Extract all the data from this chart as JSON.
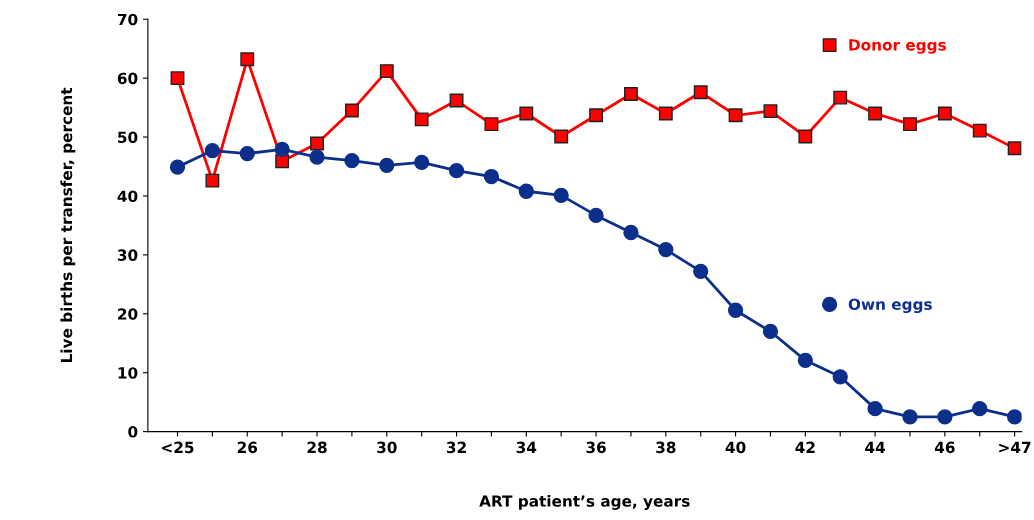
{
  "chart_data": {
    "type": "line",
    "xlabel": "ART patient’s age, years",
    "ylabel": "Live births per transfer, percent",
    "categories": [
      "<25",
      null,
      "26",
      null,
      "28",
      null,
      "30",
      null,
      "32",
      null,
      "34",
      null,
      "36",
      null,
      "38",
      null,
      "40",
      null,
      "42",
      null,
      "44",
      null,
      "46",
      null,
      ">47"
    ],
    "series": [
      {
        "name": "Donor eggs",
        "color": "#ff0000",
        "marker": "square",
        "values": [
          60.0,
          42.6,
          63.2,
          45.9,
          48.9,
          54.5,
          61.2,
          53.0,
          56.2,
          52.2,
          54.0,
          50.1,
          53.7,
          57.3,
          54.0,
          57.6,
          53.7,
          54.4,
          50.1,
          56.7,
          54.0,
          52.2,
          54.0,
          51.1,
          48.1
        ]
      },
      {
        "name": "Own eggs",
        "color": "#0d2f8c",
        "marker": "circle",
        "values": [
          44.9,
          47.7,
          47.2,
          47.9,
          46.6,
          46.0,
          45.2,
          45.7,
          44.3,
          43.3,
          40.8,
          40.1,
          36.7,
          33.8,
          30.9,
          27.2,
          20.6,
          17.0,
          12.1,
          9.3,
          3.9,
          2.5,
          2.5,
          3.9,
          2.5
        ]
      }
    ],
    "ylim": [
      0,
      70
    ],
    "yticks": [
      0,
      10,
      20,
      30,
      40,
      50,
      60,
      70
    ],
    "grid": false,
    "legend": "right"
  }
}
